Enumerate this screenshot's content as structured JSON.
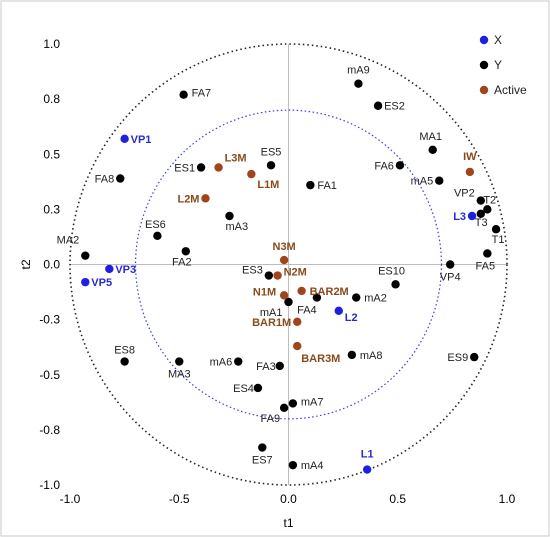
{
  "chart_data": {
    "type": "scatter",
    "xlabel": "t1",
    "ylabel": "t2",
    "xlim": [
      -1.0,
      1.0
    ],
    "ylim": [
      -1.0,
      1.0
    ],
    "xticks": [
      "-1.0",
      "-0.5",
      "0.0",
      "0.5",
      "1.0"
    ],
    "yticks": [
      "1.0",
      "0.8",
      "0.5",
      "0.3",
      "0.0",
      "-0.3",
      "-0.5",
      "-0.8",
      "-1.0"
    ],
    "circle_radii": [
      1.0,
      0.7
    ],
    "legend_position": "top-right",
    "series": [
      {
        "name": "X",
        "color": "#1f1fe0",
        "points": [
          {
            "label": "VP1",
            "x": -0.75,
            "y": 0.57
          },
          {
            "label": "VP3",
            "x": -0.82,
            "y": -0.02
          },
          {
            "label": "VP5",
            "x": -0.93,
            "y": -0.08
          },
          {
            "label": "L3",
            "x": 0.84,
            "y": 0.22
          },
          {
            "label": "L2",
            "x": 0.23,
            "y": -0.21
          },
          {
            "label": "L1",
            "x": 0.36,
            "y": -0.93
          }
        ]
      },
      {
        "name": "Y",
        "color": "#000000",
        "points": [
          {
            "label": "FA7",
            "x": -0.48,
            "y": 0.77
          },
          {
            "label": "FA8",
            "x": -0.77,
            "y": 0.39
          },
          {
            "label": "ES1",
            "x": -0.4,
            "y": 0.44
          },
          {
            "label": "ES5",
            "x": -0.08,
            "y": 0.45
          },
          {
            "label": "mA3",
            "x": -0.27,
            "y": 0.22
          },
          {
            "label": "ES6",
            "x": -0.6,
            "y": 0.13
          },
          {
            "label": "FA2",
            "x": -0.47,
            "y": 0.06
          },
          {
            "label": "MA2",
            "x": -0.93,
            "y": 0.04
          },
          {
            "label": "mA9",
            "x": 0.32,
            "y": 0.82
          },
          {
            "label": "ES2",
            "x": 0.41,
            "y": 0.72
          },
          {
            "label": "MA1",
            "x": 0.66,
            "y": 0.52
          },
          {
            "label": "FA6",
            "x": 0.51,
            "y": 0.45
          },
          {
            "label": "mA5",
            "x": 0.69,
            "y": 0.38
          },
          {
            "label": "FA1",
            "x": 0.1,
            "y": 0.36
          },
          {
            "label": "VP2",
            "x": 0.88,
            "y": 0.29
          },
          {
            "label": "T2",
            "x": 0.91,
            "y": 0.25
          },
          {
            "label": "T3",
            "x": 0.88,
            "y": 0.23
          },
          {
            "label": "T1",
            "x": 0.95,
            "y": 0.16
          },
          {
            "label": "FA5",
            "x": 0.91,
            "y": 0.05
          },
          {
            "label": "VP4",
            "x": 0.74,
            "y": 0.0
          },
          {
            "label": "ES10",
            "x": 0.49,
            "y": -0.09
          },
          {
            "label": "ES3",
            "x": -0.09,
            "y": -0.05
          },
          {
            "label": "FA4",
            "x": 0.13,
            "y": -0.15
          },
          {
            "label": "mA2",
            "x": 0.31,
            "y": -0.15
          },
          {
            "label": "mA1",
            "x": 0.0,
            "y": -0.17
          },
          {
            "label": "mA8",
            "x": 0.29,
            "y": -0.41
          },
          {
            "label": "FA3",
            "x": -0.04,
            "y": -0.46
          },
          {
            "label": "mA6",
            "x": -0.23,
            "y": -0.44
          },
          {
            "label": "MA3",
            "x": -0.5,
            "y": -0.44
          },
          {
            "label": "ES8",
            "x": -0.75,
            "y": -0.44
          },
          {
            "label": "ES4",
            "x": -0.14,
            "y": -0.56
          },
          {
            "label": "mA7",
            "x": 0.02,
            "y": -0.63
          },
          {
            "label": "FA9",
            "x": -0.02,
            "y": -0.65
          },
          {
            "label": "ES7",
            "x": -0.12,
            "y": -0.83
          },
          {
            "label": "mA4",
            "x": 0.02,
            "y": -0.91
          },
          {
            "label": "ES9",
            "x": 0.85,
            "y": -0.42
          }
        ]
      },
      {
        "name": "Active",
        "color": "#a0441a",
        "points": [
          {
            "label": "L3M",
            "x": -0.32,
            "y": 0.44
          },
          {
            "label": "L1M",
            "x": -0.17,
            "y": 0.41
          },
          {
            "label": "L2M",
            "x": -0.38,
            "y": 0.3
          },
          {
            "label": "IW",
            "x": 0.83,
            "y": 0.42
          },
          {
            "label": "N3M",
            "x": -0.02,
            "y": 0.02
          },
          {
            "label": "N2M",
            "x": -0.05,
            "y": -0.05
          },
          {
            "label": "N1M",
            "x": -0.02,
            "y": -0.14
          },
          {
            "label": "BAR2M",
            "x": 0.06,
            "y": -0.12
          },
          {
            "label": "BAR1M",
            "x": 0.04,
            "y": -0.26
          },
          {
            "label": "BAR3M",
            "x": 0.04,
            "y": -0.37
          }
        ]
      }
    ]
  }
}
